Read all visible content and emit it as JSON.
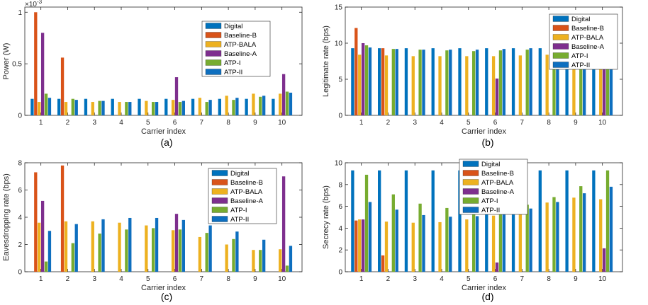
{
  "series_colors": [
    "#0072BD",
    "#D95319",
    "#EDB120",
    "#7E2F8E",
    "#77AC30",
    "#0E6FBF"
  ],
  "chart_data": [
    {
      "type": "bar",
      "panel_label": "(a)",
      "xlabel": "Carrier index",
      "ylabel": "Power (W)",
      "exponent_label": "×10",
      "exponent_power": "-3",
      "ylim": [
        0,
        1.05
      ],
      "yticks": [
        0,
        0.5,
        1
      ],
      "ytick_labels": [
        "0",
        "0.5",
        "1"
      ],
      "categories": [
        "1",
        "2",
        "3",
        "4",
        "5",
        "6",
        "7",
        "8",
        "9",
        "10"
      ],
      "series": [
        {
          "name": "Digital",
          "values": [
            0.16,
            0.16,
            0.16,
            0.16,
            0.16,
            0.16,
            0.16,
            0.16,
            0.16,
            0.16
          ]
        },
        {
          "name": "Baseline-B",
          "values": [
            1.0,
            0.56,
            0,
            0,
            0,
            0,
            0,
            0,
            0,
            0
          ]
        },
        {
          "name": "ATP-BALA",
          "values": [
            0.13,
            0.13,
            0.13,
            0.13,
            0.14,
            0.15,
            0.17,
            0.19,
            0.21,
            0.21
          ]
        },
        {
          "name": "Baseline-A",
          "values": [
            0.8,
            0,
            0,
            0,
            0,
            0.37,
            0,
            0,
            0,
            0.4
          ]
        },
        {
          "name": "ATP-I",
          "values": [
            0.21,
            0.16,
            0.14,
            0.13,
            0.13,
            0.13,
            0.13,
            0.15,
            0.18,
            0.23
          ]
        },
        {
          "name": "ATP-II",
          "values": [
            0.17,
            0.15,
            0.14,
            0.13,
            0.13,
            0.14,
            0.15,
            0.17,
            0.19,
            0.22
          ]
        }
      ],
      "legend_position": "top-right"
    },
    {
      "type": "bar",
      "panel_label": "(b)",
      "xlabel": "Carrier index",
      "ylabel": "Legitimate rate (bps)",
      "ylim": [
        0,
        15
      ],
      "yticks": [
        0,
        5,
        10,
        15
      ],
      "ytick_labels": [
        "0",
        "5",
        "10",
        "15"
      ],
      "categories": [
        "1",
        "2",
        "3",
        "4",
        "5",
        "6",
        "7",
        "8",
        "9",
        "10"
      ],
      "series": [
        {
          "name": "Digital",
          "values": [
            9.3,
            9.3,
            9.3,
            9.3,
            9.3,
            9.3,
            9.3,
            9.3,
            9.3,
            9.3
          ]
        },
        {
          "name": "Baseline-B",
          "values": [
            12.1,
            9.3,
            0,
            0,
            0,
            0,
            0,
            0,
            0,
            0
          ]
        },
        {
          "name": "ATP-BALA",
          "values": [
            8.4,
            8.3,
            8.2,
            8.2,
            8.2,
            8.2,
            8.3,
            8.4,
            8.5,
            8.6
          ]
        },
        {
          "name": "Baseline-A",
          "values": [
            10.0,
            0,
            0,
            0,
            0,
            5.1,
            0,
            0,
            0,
            10.2
          ]
        },
        {
          "name": "ATP-I",
          "values": [
            9.7,
            9.2,
            9.1,
            9.0,
            8.9,
            9.0,
            9.1,
            9.3,
            9.5,
            9.8
          ]
        },
        {
          "name": "ATP-II",
          "values": [
            9.4,
            9.2,
            9.1,
            9.1,
            9.1,
            9.2,
            9.3,
            9.4,
            9.5,
            9.8
          ]
        }
      ],
      "legend_position": "top-right"
    },
    {
      "type": "bar",
      "panel_label": "(c)",
      "xlabel": "Carrier index",
      "ylabel": "Eavesdropping rate (bps)",
      "ylim": [
        0,
        8
      ],
      "yticks": [
        0,
        2,
        4,
        6,
        8
      ],
      "ytick_labels": [
        "0",
        "2",
        "4",
        "6",
        "8"
      ],
      "categories": [
        "1",
        "2",
        "3",
        "4",
        "5",
        "6",
        "7",
        "8",
        "9",
        "10"
      ],
      "series": [
        {
          "name": "Digital",
          "values": [
            0,
            0,
            0,
            0,
            0,
            0,
            0,
            0,
            0,
            0
          ]
        },
        {
          "name": "Baseline-B",
          "values": [
            7.3,
            7.8,
            0,
            0,
            0,
            0,
            0,
            0,
            0,
            0
          ]
        },
        {
          "name": "ATP-BALA",
          "values": [
            3.6,
            3.7,
            3.7,
            3.6,
            3.4,
            3.05,
            2.55,
            2.0,
            1.6,
            1.65
          ]
        },
        {
          "name": "Baseline-A",
          "values": [
            5.2,
            0,
            0,
            0,
            0,
            4.25,
            0,
            0,
            0,
            7.0
          ]
        },
        {
          "name": "ATP-I",
          "values": [
            0.75,
            2.1,
            2.8,
            3.1,
            3.2,
            3.1,
            2.85,
            2.4,
            1.6,
            0.45
          ]
        },
        {
          "name": "ATP-II",
          "values": [
            3.0,
            3.5,
            3.85,
            3.95,
            3.95,
            3.8,
            3.4,
            2.95,
            2.35,
            1.9
          ]
        }
      ],
      "legend_position": "top-right"
    },
    {
      "type": "bar",
      "panel_label": "(d)",
      "xlabel": "Carrier index",
      "ylabel": "Secrecy rate (bps)",
      "ylim": [
        0,
        10
      ],
      "yticks": [
        0,
        2,
        4,
        6,
        8,
        10
      ],
      "ytick_labels": [
        "0",
        "2",
        "4",
        "6",
        "8",
        "10"
      ],
      "categories": [
        "1",
        "2",
        "3",
        "4",
        "5",
        "6",
        "7",
        "8",
        "9",
        "10"
      ],
      "series": [
        {
          "name": "Digital",
          "values": [
            9.3,
            9.3,
            9.3,
            9.3,
            9.3,
            9.3,
            9.3,
            9.3,
            9.3,
            9.3
          ]
        },
        {
          "name": "Baseline-B",
          "values": [
            4.7,
            1.5,
            0,
            0,
            0,
            0,
            0,
            0,
            0,
            0
          ]
        },
        {
          "name": "ATP-BALA",
          "values": [
            4.8,
            4.6,
            4.5,
            4.55,
            4.8,
            5.15,
            5.75,
            6.35,
            6.8,
            6.65
          ]
        },
        {
          "name": "Baseline-A",
          "values": [
            4.8,
            0,
            0,
            0,
            0,
            0.85,
            0,
            0,
            0,
            2.15
          ]
        },
        {
          "name": "ATP-I",
          "values": [
            8.9,
            7.1,
            6.25,
            5.85,
            5.65,
            5.8,
            6.15,
            6.85,
            7.85,
            9.3
          ]
        },
        {
          "name": "ATP-II",
          "values": [
            6.4,
            5.7,
            5.2,
            5.05,
            5.1,
            5.35,
            5.8,
            6.4,
            7.2,
            7.8
          ]
        }
      ],
      "legend_position": "top-center"
    }
  ]
}
